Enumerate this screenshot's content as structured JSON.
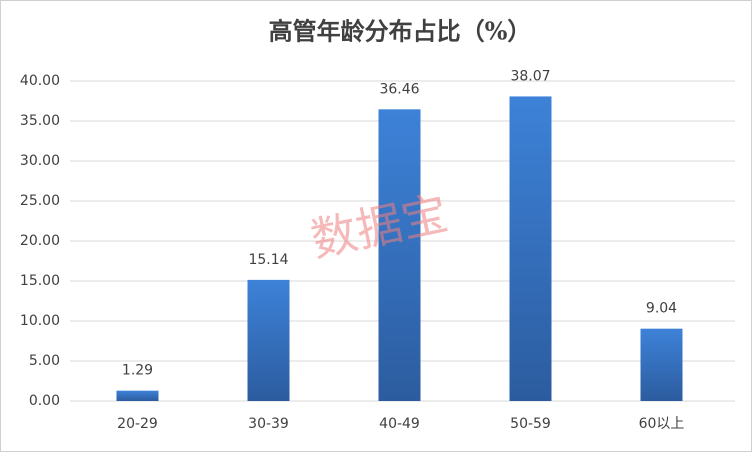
{
  "chart_data": {
    "type": "bar",
    "title": "高管年龄分布占比（%）",
    "categories": [
      "20-29",
      "30-39",
      "40-49",
      "50-59",
      "60以上"
    ],
    "values": [
      1.29,
      15.14,
      36.46,
      38.07,
      9.04
    ],
    "color": "#3a78c9",
    "ylim": [
      0,
      40
    ],
    "yticks": [
      {
        "value": 0,
        "label": "0.00"
      },
      {
        "value": 5,
        "label": "5.00"
      },
      {
        "value": 10,
        "label": "10.00"
      },
      {
        "value": 15,
        "label": "15.00"
      },
      {
        "value": 20,
        "label": "20.00"
      },
      {
        "value": 25,
        "label": "25.00"
      },
      {
        "value": 30,
        "label": "30.00"
      },
      {
        "value": 35,
        "label": "35.00"
      },
      {
        "value": 40,
        "label": "40.00"
      }
    ],
    "grid": true,
    "watermark": "数据宝"
  }
}
